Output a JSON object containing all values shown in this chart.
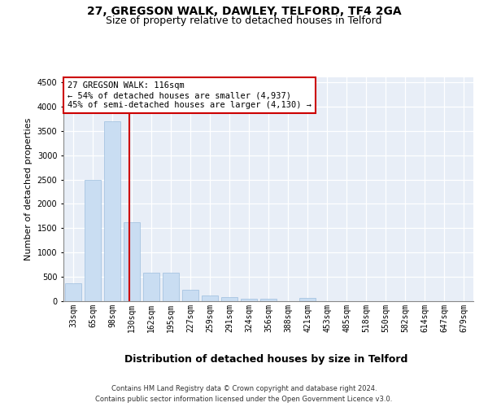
{
  "title1": "27, GREGSON WALK, DAWLEY, TELFORD, TF4 2GA",
  "title2": "Size of property relative to detached houses in Telford",
  "xlabel": "Distribution of detached houses by size in Telford",
  "ylabel": "Number of detached properties",
  "categories": [
    "33sqm",
    "65sqm",
    "98sqm",
    "130sqm",
    "162sqm",
    "195sqm",
    "227sqm",
    "259sqm",
    "291sqm",
    "324sqm",
    "356sqm",
    "388sqm",
    "421sqm",
    "453sqm",
    "485sqm",
    "518sqm",
    "550sqm",
    "582sqm",
    "614sqm",
    "647sqm",
    "679sqm"
  ],
  "values": [
    370,
    2500,
    3700,
    1625,
    580,
    580,
    240,
    115,
    80,
    50,
    50,
    0,
    60,
    0,
    0,
    0,
    0,
    0,
    0,
    0,
    0
  ],
  "bar_color": "#c9ddf2",
  "bar_edge_color": "#9dbede",
  "vline_x": 2.87,
  "vline_color": "#cc0000",
  "annotation_text": "27 GREGSON WALK: 116sqm\n← 54% of detached houses are smaller (4,937)\n45% of semi-detached houses are larger (4,130) →",
  "annotation_box_color": "#ffffff",
  "annotation_box_edge": "#cc0000",
  "ylim": [
    0,
    4600
  ],
  "yticks": [
    0,
    500,
    1000,
    1500,
    2000,
    2500,
    3000,
    3500,
    4000,
    4500
  ],
  "bg_color": "#e8eef7",
  "footer": "Contains HM Land Registry data © Crown copyright and database right 2024.\nContains public sector information licensed under the Open Government Licence v3.0.",
  "title_fontsize": 10,
  "subtitle_fontsize": 9,
  "xlabel_fontsize": 9,
  "ylabel_fontsize": 8,
  "tick_fontsize": 7,
  "footer_fontsize": 6,
  "annot_fontsize": 7.5
}
